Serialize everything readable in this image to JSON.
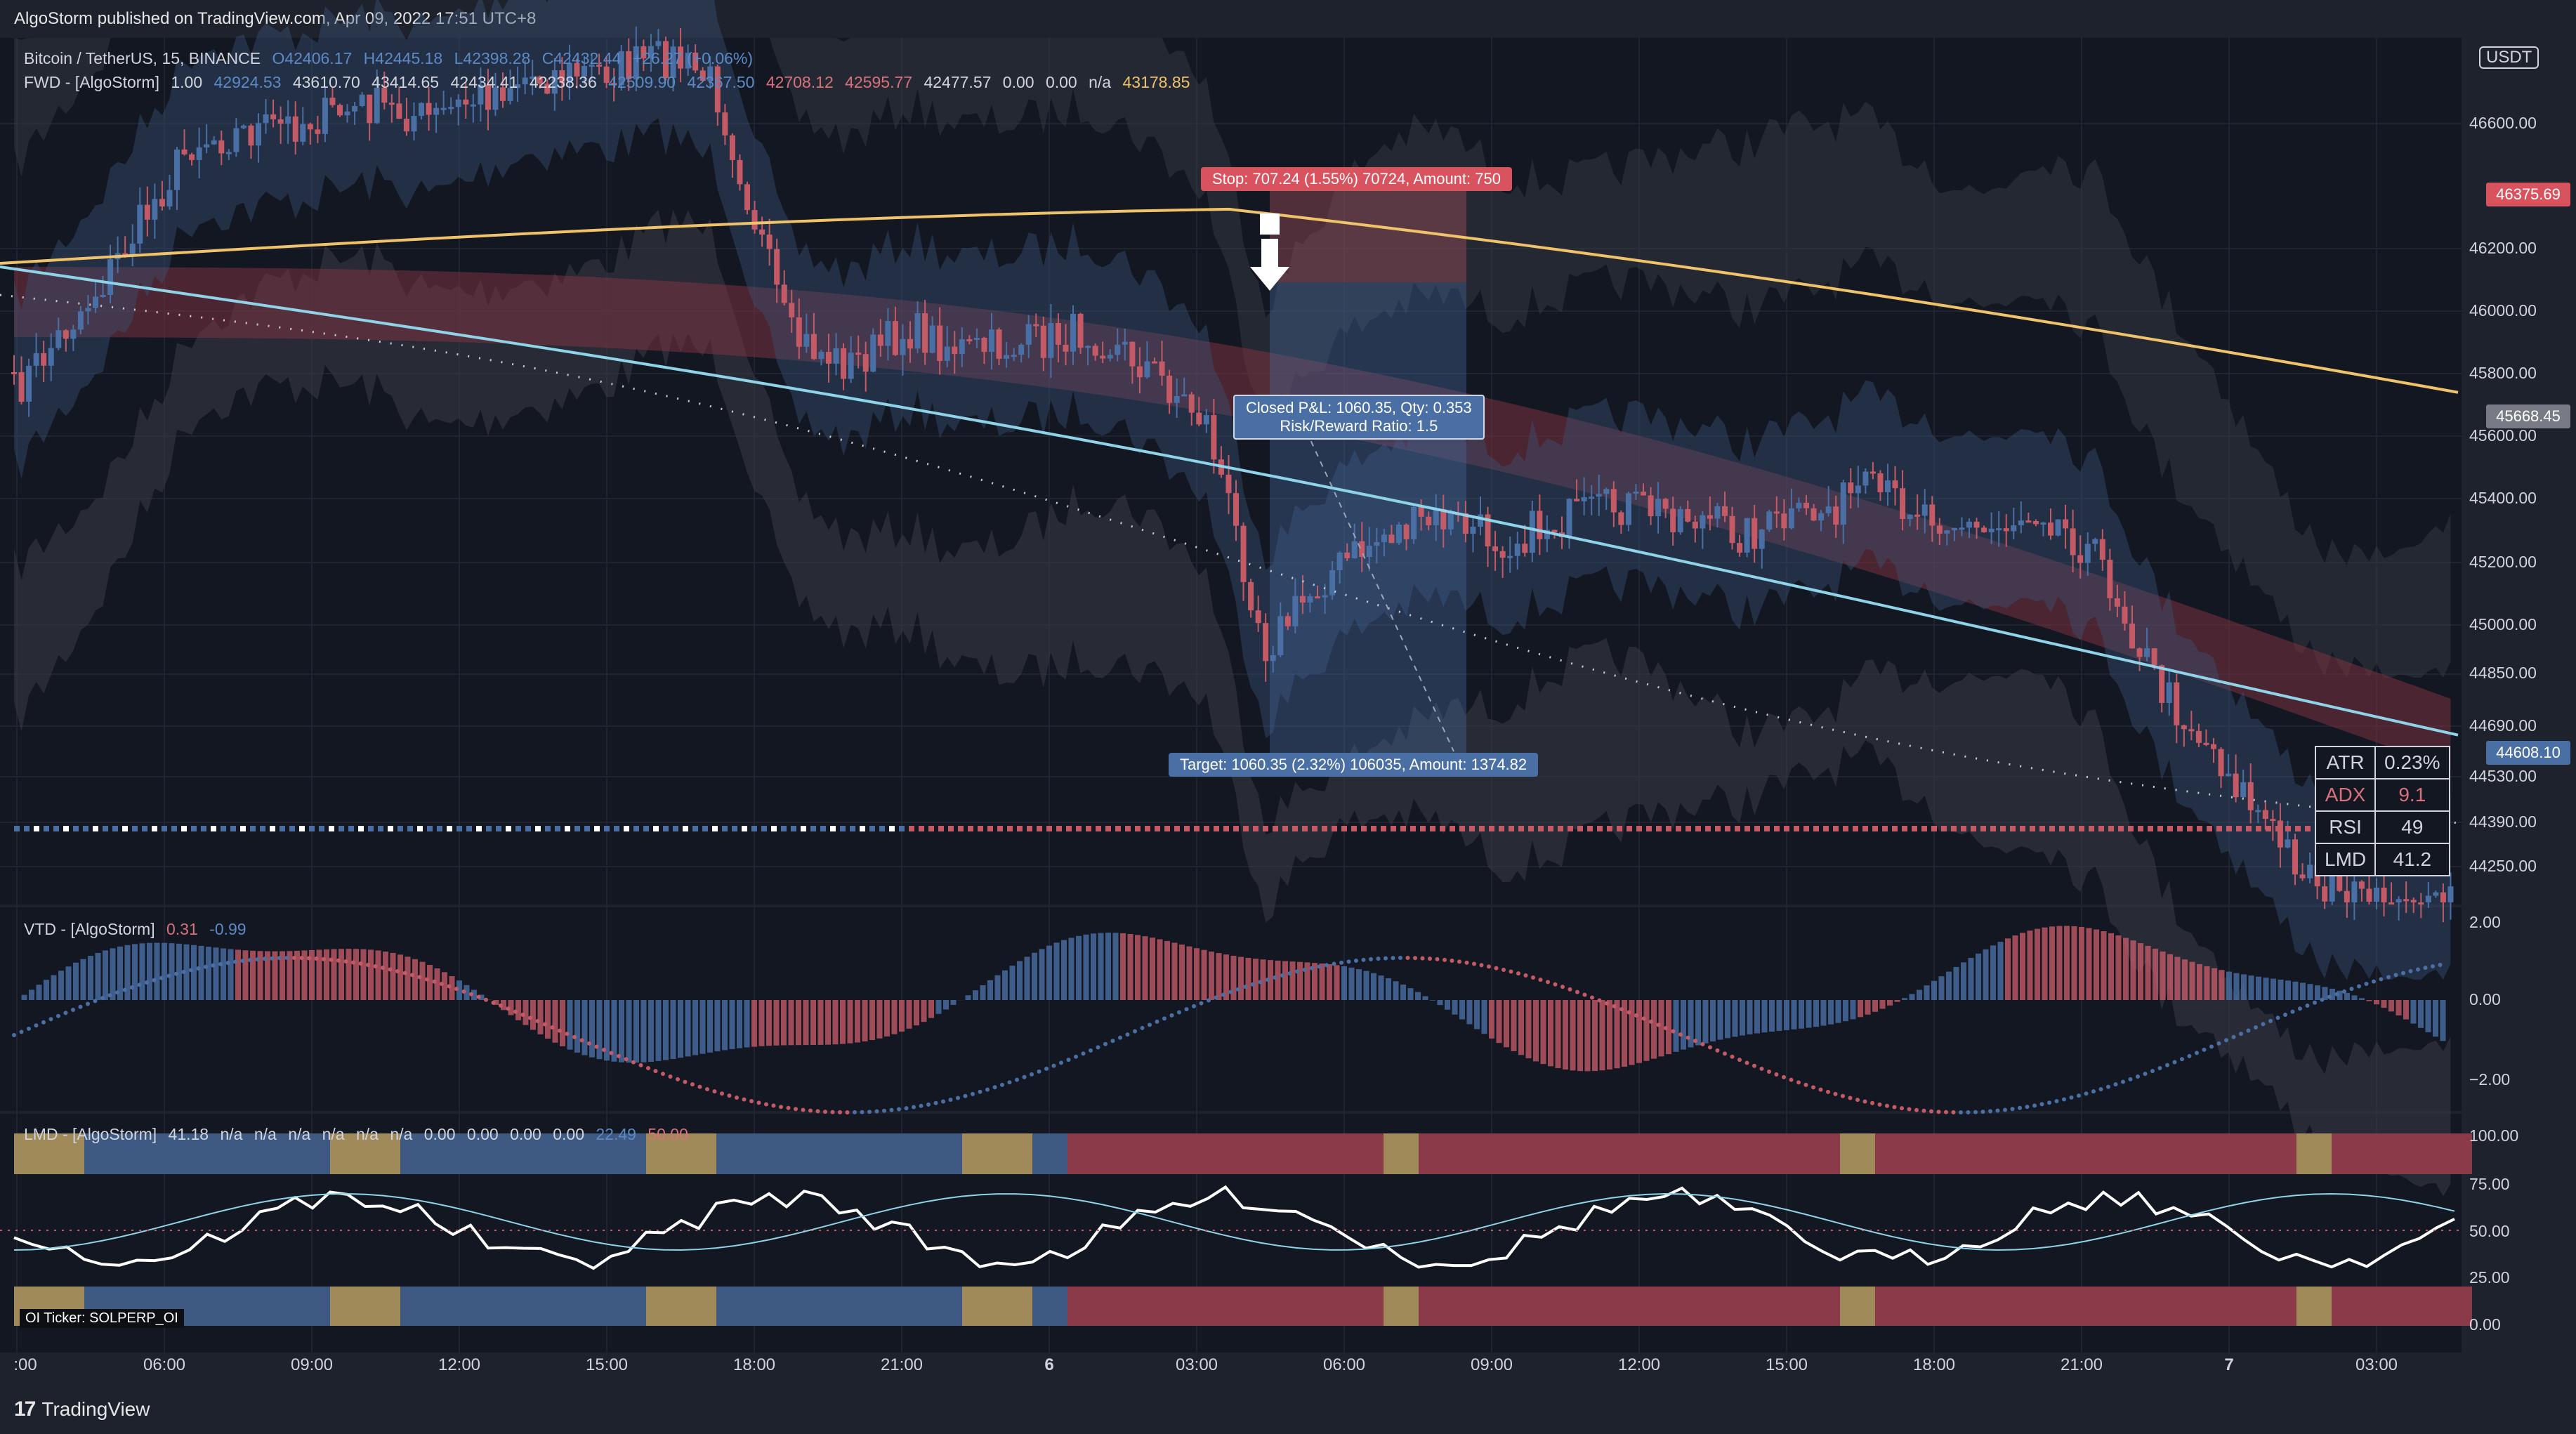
{
  "header": {
    "published": "AlgoStorm published on TradingView.com, Apr 09, 2022 17:51 UTC+8"
  },
  "main_legend": {
    "symbol": "Bitcoin / TetherUS, 15, BINANCE",
    "open": "O42406.17",
    "high": "H42445.18",
    "low": "L42398.28",
    "close": "C42432.44",
    "change": "+26.27 (+0.06%)"
  },
  "fwd_legend": {
    "name": "FWD - [AlgoStorm]",
    "values": [
      "1.00",
      "42924.53",
      "43610.70",
      "43414.65",
      "42434.41",
      "42238.36",
      "42509.90",
      "42367.50",
      "42708.12",
      "42595.77",
      "42477.57",
      "0.00",
      "0.00",
      "n/a",
      "43178.85"
    ]
  },
  "vtd_legend": {
    "name": "VTD - [AlgoStorm]",
    "v1": "0.31",
    "v2": "-0.99"
  },
  "lmd_legend": {
    "name": "LMD - [AlgoStorm]",
    "values": [
      "41.18",
      "n/a",
      "n/a",
      "n/a",
      "n/a",
      "n/a",
      "n/a",
      "0.00",
      "0.00",
      "0.00",
      "0.00",
      "22.49",
      "50.00"
    ]
  },
  "currency_button": "USDT",
  "price_axis": [
    "46600.00",
    "46200.00",
    "46000.00",
    "45800.00",
    "45600.00",
    "45400.00",
    "45200.00",
    "45000.00",
    "44850.00",
    "44690.00",
    "44530.00",
    "44390.00",
    "44250.00"
  ],
  "price_labels": [
    {
      "text": "46375.69",
      "color": "#d9535f"
    },
    {
      "text": "45668.45",
      "color": "#9598a1"
    },
    {
      "text": "44608.10",
      "color": "#4a6fa5"
    }
  ],
  "vtd_axis": [
    "2.00",
    "0.00",
    "−2.00"
  ],
  "lmd_axis": [
    "100.00",
    "75.00",
    "50.00",
    "25.00",
    "0.00"
  ],
  "time_axis": [
    ":00",
    "06:00",
    "09:00",
    "12:00",
    "15:00",
    "18:00",
    "21:00",
    "6",
    "03:00",
    "06:00",
    "09:00",
    "12:00",
    "15:00",
    "18:00",
    "21:00",
    "7",
    "03:00"
  ],
  "trade": {
    "stop": "Stop: 707.24 (1.55%) 70724, Amount: 750",
    "closed_line1": "Closed P&L: 1060.35, Qty: 0.353",
    "closed_line2": "Risk/Reward Ratio: 1.5",
    "target": "Target: 1060.35 (2.32%) 106035, Amount: 1374.82"
  },
  "stats": [
    {
      "label": "ATR",
      "value": "0.23%",
      "label_color": "#ffffff"
    },
    {
      "label": "ADX",
      "value": "9.1",
      "label_color": "#d9707a"
    },
    {
      "label": "RSI",
      "value": "49",
      "label_color": "#ffffff"
    },
    {
      "label": "LMD",
      "value": "41.2",
      "label_color": "#ffffff"
    }
  ],
  "oi_ticker": "OI Ticker: SOLPERP_OI",
  "footer": {
    "brand": "TradingView",
    "logo": "17"
  },
  "colors": {
    "background": "#131722",
    "bull": "#4a6fa5",
    "bear": "#c45a66",
    "yellow": "#f0c36a",
    "cyan": "#8fd3e8"
  }
}
